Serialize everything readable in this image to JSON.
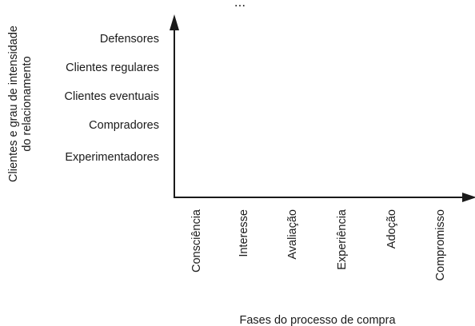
{
  "title_fragment": "...",
  "y_axis": {
    "title_line1": "Clientes e grau de intensidade",
    "title_line2": "do relacionamento",
    "levels": [
      "Defensores",
      "Clientes regulares",
      "Clientes eventuais",
      "Compradores",
      "Experimentadores"
    ]
  },
  "x_axis": {
    "title": "Fases do processo de compra",
    "stages": [
      "Consciência",
      "Interesse",
      "Avaliação",
      "Experiência",
      "Adoção",
      "Compromisso"
    ]
  },
  "colors": {
    "ink": "#1a1a1a",
    "background": "#ffffff"
  }
}
